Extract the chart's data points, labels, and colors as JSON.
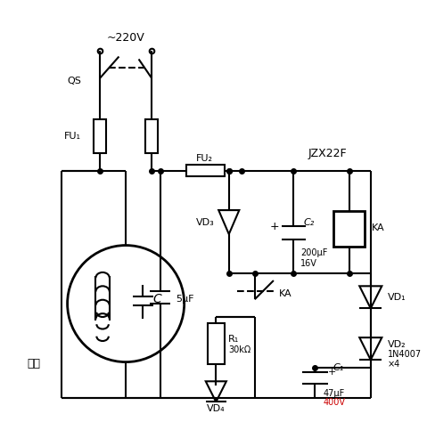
{
  "background": "#ffffff",
  "line_color": "#000000",
  "red_color": "#cc0000",
  "lw": 1.5,
  "labels": {
    "voltage": "~220V",
    "qs": "QS",
    "fu1": "FU₁",
    "fu2": "FU₂",
    "jzx22f": "JZX22F",
    "c2_label": "C₂",
    "ka_top": "KA",
    "vd1": "VD₁",
    "vd2": "VD₂",
    "vd3": "VD₃",
    "vd4": "VD₄",
    "c200": "200μF",
    "v16": "16V",
    "ka_mid": "KA",
    "r1": "R₁",
    "r1_val": "30kΩ",
    "c1_label": "C₁",
    "c1_val": "47μF",
    "c400": "400V",
    "motor_c": "C",
    "motor_5uf": "5μF",
    "motor_label": "电机",
    "in4007": "1N4007",
    "x4": "×4",
    "plus": "+"
  }
}
